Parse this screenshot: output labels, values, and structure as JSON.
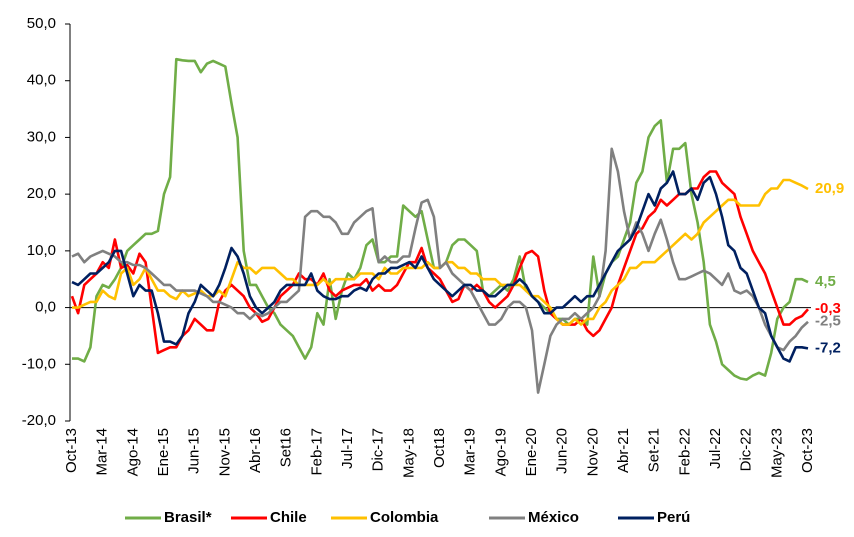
{
  "chart_data": {
    "type": "line",
    "categories": [
      "Oct-13",
      null,
      null,
      null,
      null,
      "Mar-14",
      null,
      null,
      null,
      null,
      "Ago-14",
      null,
      null,
      null,
      null,
      "Ene-15",
      null,
      null,
      null,
      null,
      "Jun-15",
      null,
      null,
      null,
      null,
      "Nov-15",
      null,
      null,
      null,
      null,
      "Abr-16",
      null,
      null,
      null,
      null,
      "Set16",
      null,
      null,
      null,
      null,
      "Feb-17",
      null,
      null,
      null,
      null,
      "Jul-17",
      null,
      null,
      null,
      null,
      "Dic-17",
      null,
      null,
      null,
      null,
      "May-18",
      null,
      null,
      null,
      null,
      "Oct18",
      null,
      null,
      null,
      null,
      "Mar-19",
      null,
      null,
      null,
      null,
      "Ago-19",
      null,
      null,
      null,
      null,
      "Ene-20",
      null,
      null,
      null,
      null,
      "Jun-20",
      null,
      null,
      null,
      null,
      "Nov-20",
      null,
      null,
      null,
      null,
      "Abr-21",
      null,
      null,
      null,
      null,
      "Set-21",
      null,
      null,
      null,
      null,
      "Feb-22",
      null,
      null,
      null,
      null,
      "Jul-22",
      null,
      null,
      null,
      null,
      "Dic-22",
      null,
      null,
      null,
      null,
      "May-23",
      null,
      null,
      null,
      null,
      "Oct-23"
    ],
    "ylim": [
      -20,
      50
    ],
    "yticks": [
      {
        "value": -20,
        "label": "-20,0"
      },
      {
        "value": -10,
        "label": "-10,0"
      },
      {
        "value": 0,
        "label": "0,0"
      },
      {
        "value": 10,
        "label": "10,0"
      },
      {
        "value": 20,
        "label": "20,0"
      },
      {
        "value": 30,
        "label": "30,0"
      },
      {
        "value": 40,
        "label": "40,0"
      },
      {
        "value": 50,
        "label": "50,0"
      }
    ],
    "grid": false,
    "legend": "bottom",
    "series": [
      {
        "name": "Brasil*",
        "color": "#70ad47",
        "end_label": "4,5",
        "values": [
          -9,
          -9,
          -9.5,
          -7,
          2,
          4,
          3.5,
          5,
          7,
          10,
          11,
          12,
          13,
          13,
          13.5,
          20,
          23,
          43.8,
          43.6,
          43.5,
          43.5,
          41.5,
          43,
          43.5,
          43,
          42.5,
          36,
          30,
          10,
          4,
          4,
          2,
          0,
          -1,
          -3,
          -4,
          -5,
          -7,
          -9,
          -7,
          -1,
          -3,
          5,
          -2,
          3,
          6,
          5,
          7,
          11,
          12,
          8,
          8,
          9,
          9,
          18,
          17,
          16,
          17,
          12,
          7,
          7,
          8,
          11,
          12,
          12,
          11,
          10,
          3,
          2,
          3,
          4,
          3,
          5,
          9,
          3,
          2,
          1,
          0,
          -1,
          -2,
          -2,
          -3,
          -2,
          -2,
          -3,
          9,
          2,
          6,
          8,
          9,
          12,
          15,
          22,
          24,
          30,
          32,
          33,
          22,
          28,
          28,
          29,
          20,
          15,
          8,
          -3,
          -6,
          -10,
          -11,
          -12,
          -12.5,
          -12.7,
          -12,
          -11.5,
          -12,
          -8,
          -2,
          0,
          1,
          5,
          5,
          4.5
        ]
      },
      {
        "name": "Chile",
        "color": "#ff0000",
        "end_label": "-0,3",
        "values": [
          2,
          -1,
          4,
          5,
          6,
          8,
          7,
          12,
          7,
          7.5,
          6,
          9.5,
          8,
          0,
          -8,
          -7.5,
          -7,
          -7,
          -5,
          -4,
          -2,
          -3,
          -4,
          -4,
          1,
          3,
          4,
          3,
          2,
          0,
          -1,
          -2.5,
          -2,
          0,
          2,
          3,
          4,
          6,
          5,
          5,
          4,
          6,
          3,
          2,
          3,
          3.5,
          4,
          4,
          5,
          3,
          4,
          3,
          3,
          4,
          6,
          8,
          8,
          10.5,
          7,
          6,
          5,
          3,
          1,
          1.5,
          4,
          3,
          4,
          3,
          1,
          0,
          1,
          2,
          4,
          7,
          9.5,
          10,
          9,
          3,
          -1,
          -2,
          -3,
          -3,
          -3,
          -2,
          -4,
          -5,
          -4,
          -2,
          0,
          4,
          7,
          10,
          13,
          14,
          16,
          17,
          19,
          18,
          19,
          20,
          20,
          21,
          21,
          23,
          24,
          24,
          22,
          21,
          20,
          16,
          13,
          10,
          8,
          6,
          3,
          0,
          -3,
          -3,
          -2,
          -1.5,
          -0.3
        ]
      },
      {
        "name": "Colombia",
        "color": "#ffc000",
        "end_label": "20,9",
        "values": [
          0,
          0,
          0.5,
          1,
          1,
          3,
          2,
          1.5,
          6,
          7,
          4,
          5,
          7,
          5,
          3,
          3,
          2,
          1.5,
          3,
          2,
          2.5,
          3,
          2,
          2,
          3,
          2,
          5,
          8,
          7,
          7,
          6,
          7,
          7,
          7,
          6,
          5,
          5,
          4,
          4,
          4,
          4,
          5,
          4,
          5,
          5,
          5,
          5,
          6,
          6,
          6,
          5,
          7,
          6,
          6,
          7,
          7,
          7,
          7,
          8,
          7,
          7,
          8,
          8,
          7,
          7,
          6,
          6,
          5,
          5,
          5,
          4,
          4,
          4,
          4,
          3,
          2,
          2,
          1,
          0,
          -2,
          -3,
          -3,
          -2,
          -3,
          -2,
          -2,
          0,
          1,
          3,
          4,
          5,
          7,
          7,
          8,
          8,
          8,
          9,
          10,
          11,
          12,
          13,
          12,
          13,
          15,
          16,
          17,
          18,
          19,
          19,
          18,
          18,
          18,
          18,
          20,
          21,
          21,
          22.5,
          22.5,
          22,
          21.5,
          20.9
        ]
      },
      {
        "name": "México",
        "color": "#808080",
        "end_label": "-2,5",
        "values": [
          9,
          9.5,
          8,
          9,
          9.5,
          10,
          9.5,
          9,
          8,
          8,
          7.5,
          7.5,
          7,
          6,
          5,
          4,
          4,
          3,
          3,
          3,
          3,
          2.5,
          2,
          1,
          1,
          0.5,
          0,
          -1,
          -1,
          -2,
          -1,
          -1.5,
          -1,
          0,
          1,
          1,
          2,
          3,
          16,
          17,
          17,
          16,
          16,
          15,
          13,
          13,
          15,
          16,
          17,
          17.5,
          8,
          9,
          8,
          8,
          9,
          9,
          14,
          18.5,
          19,
          16,
          7,
          8,
          6,
          5,
          4,
          3,
          1,
          -1,
          -3,
          -3,
          -2,
          0,
          1,
          1,
          0,
          -4,
          -15,
          -10,
          -5,
          -3,
          -2,
          -2,
          -1,
          -2,
          -1,
          0,
          2,
          10,
          28,
          24,
          17,
          12,
          15,
          13,
          10,
          13,
          15.5,
          12,
          8,
          5,
          5,
          5.5,
          6,
          6.5,
          6,
          5,
          4,
          6,
          3,
          2.5,
          3,
          2,
          0,
          -3,
          -5,
          -7,
          -7.5,
          -6,
          -5,
          -3.5,
          -2.5
        ]
      },
      {
        "name": "Perú",
        "color": "#002060",
        "end_label": "-7,2",
        "values": [
          4.5,
          4,
          5,
          6,
          6,
          7,
          8,
          10,
          10,
          6,
          2,
          4,
          3,
          3,
          -1,
          -6,
          -6,
          -6.5,
          -5,
          -1,
          1,
          4,
          3,
          2,
          4,
          7,
          10.5,
          9,
          6,
          2,
          0,
          -1,
          0,
          1,
          3,
          4,
          4,
          4,
          4,
          6,
          3,
          2,
          1.5,
          1.5,
          2,
          2,
          3,
          3.5,
          3,
          5,
          6,
          6,
          7,
          7,
          7.5,
          8,
          7,
          9,
          7,
          5,
          4,
          3,
          2,
          3,
          4,
          4,
          3,
          3,
          2,
          2,
          3,
          4,
          4,
          5,
          4,
          2,
          1,
          -1,
          -1,
          0,
          0,
          1,
          2,
          1,
          2,
          2,
          4,
          6,
          8,
          10,
          11,
          12,
          14,
          17,
          20,
          18,
          21,
          22,
          24,
          20,
          20,
          21,
          19,
          22,
          23,
          20,
          16,
          11,
          10,
          7,
          6,
          3,
          0,
          -1,
          -5,
          -7,
          -9,
          -9.5,
          -7,
          -7,
          -7.2
        ]
      }
    ]
  }
}
